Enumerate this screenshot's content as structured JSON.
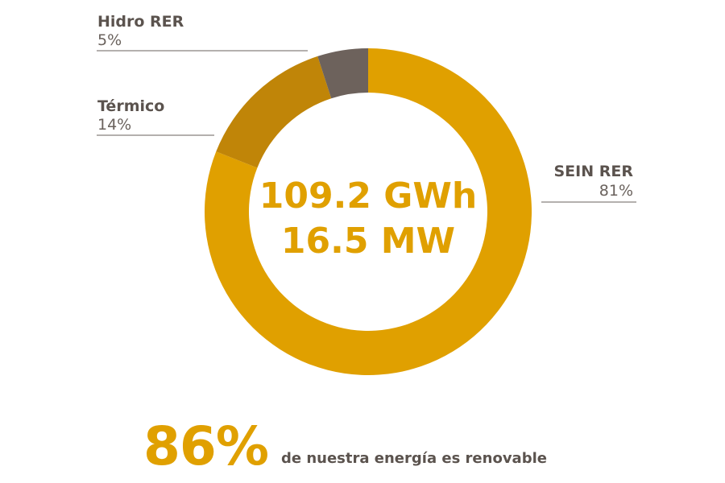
{
  "chart_data": {
    "type": "pie",
    "series": [
      {
        "label": "SEIN RER",
        "pct_text": "81%",
        "value": 81,
        "color": "#e0a000"
      },
      {
        "label": "Térmico",
        "pct_text": "14%",
        "value": 14,
        "color": "#c08508"
      },
      {
        "label": "Hidro RER",
        "pct_text": "5%",
        "value": 5,
        "color": "#6d625c"
      }
    ],
    "center_lines": [
      "109.2 GWh",
      "16.5 MW"
    ],
    "center_color": "#e0a000"
  },
  "footer": {
    "big_value": "86%",
    "caption": "de nuestra energía es renovable"
  }
}
